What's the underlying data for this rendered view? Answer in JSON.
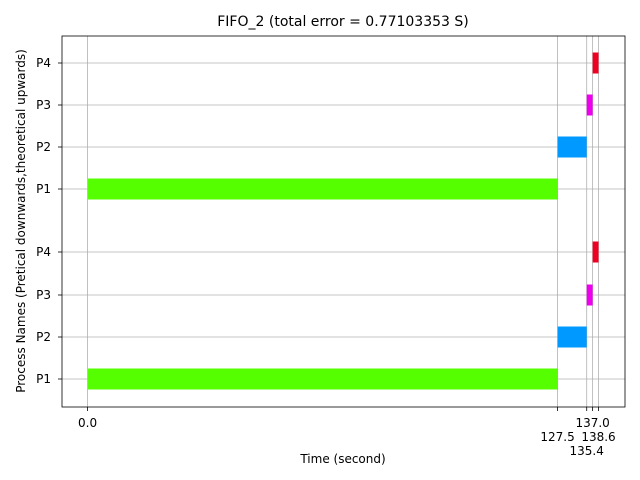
{
  "chart_data": {
    "type": "bar",
    "orientation": "horizontal-gantt",
    "title": "FIFO_2 (total error = 0.77103353 S)",
    "xlabel": "Time (second)",
    "ylabel": "Process Names (Pretical downwards,theoretical upwards)",
    "xlim": [
      -3.0,
      143.5
    ],
    "grid": true,
    "x_ticks": [
      {
        "value": 0.0,
        "label": "0.0",
        "row": 0
      },
      {
        "value": 127.5,
        "label": "127.5",
        "row": 1
      },
      {
        "value": 135.4,
        "label": "135.4",
        "row": 2
      },
      {
        "value": 137.0,
        "label": "137.0",
        "row": 0
      },
      {
        "value": 138.6,
        "label": "138.6",
        "row": 1
      }
    ],
    "rows": [
      {
        "label": "P1",
        "group": "practical",
        "start": 0.0,
        "end": 127.5,
        "color": "#55ff00"
      },
      {
        "label": "P2",
        "group": "practical",
        "start": 127.5,
        "end": 135.4,
        "color": "#0099ff"
      },
      {
        "label": "P3",
        "group": "practical",
        "start": 135.4,
        "end": 137.0,
        "color": "#ee00ee"
      },
      {
        "label": "P4",
        "group": "practical",
        "start": 137.0,
        "end": 138.6,
        "color": "#ee0022"
      },
      {
        "label": "P1",
        "group": "theoretical",
        "start": 0.0,
        "end": 127.5,
        "color": "#55ff00"
      },
      {
        "label": "P2",
        "group": "theoretical",
        "start": 127.5,
        "end": 135.4,
        "color": "#0099ff"
      },
      {
        "label": "P3",
        "group": "theoretical",
        "start": 135.4,
        "end": 137.0,
        "color": "#ee00ee"
      },
      {
        "label": "P4",
        "group": "theoretical",
        "start": 137.0,
        "end": 138.6,
        "color": "#ee0022"
      }
    ]
  }
}
